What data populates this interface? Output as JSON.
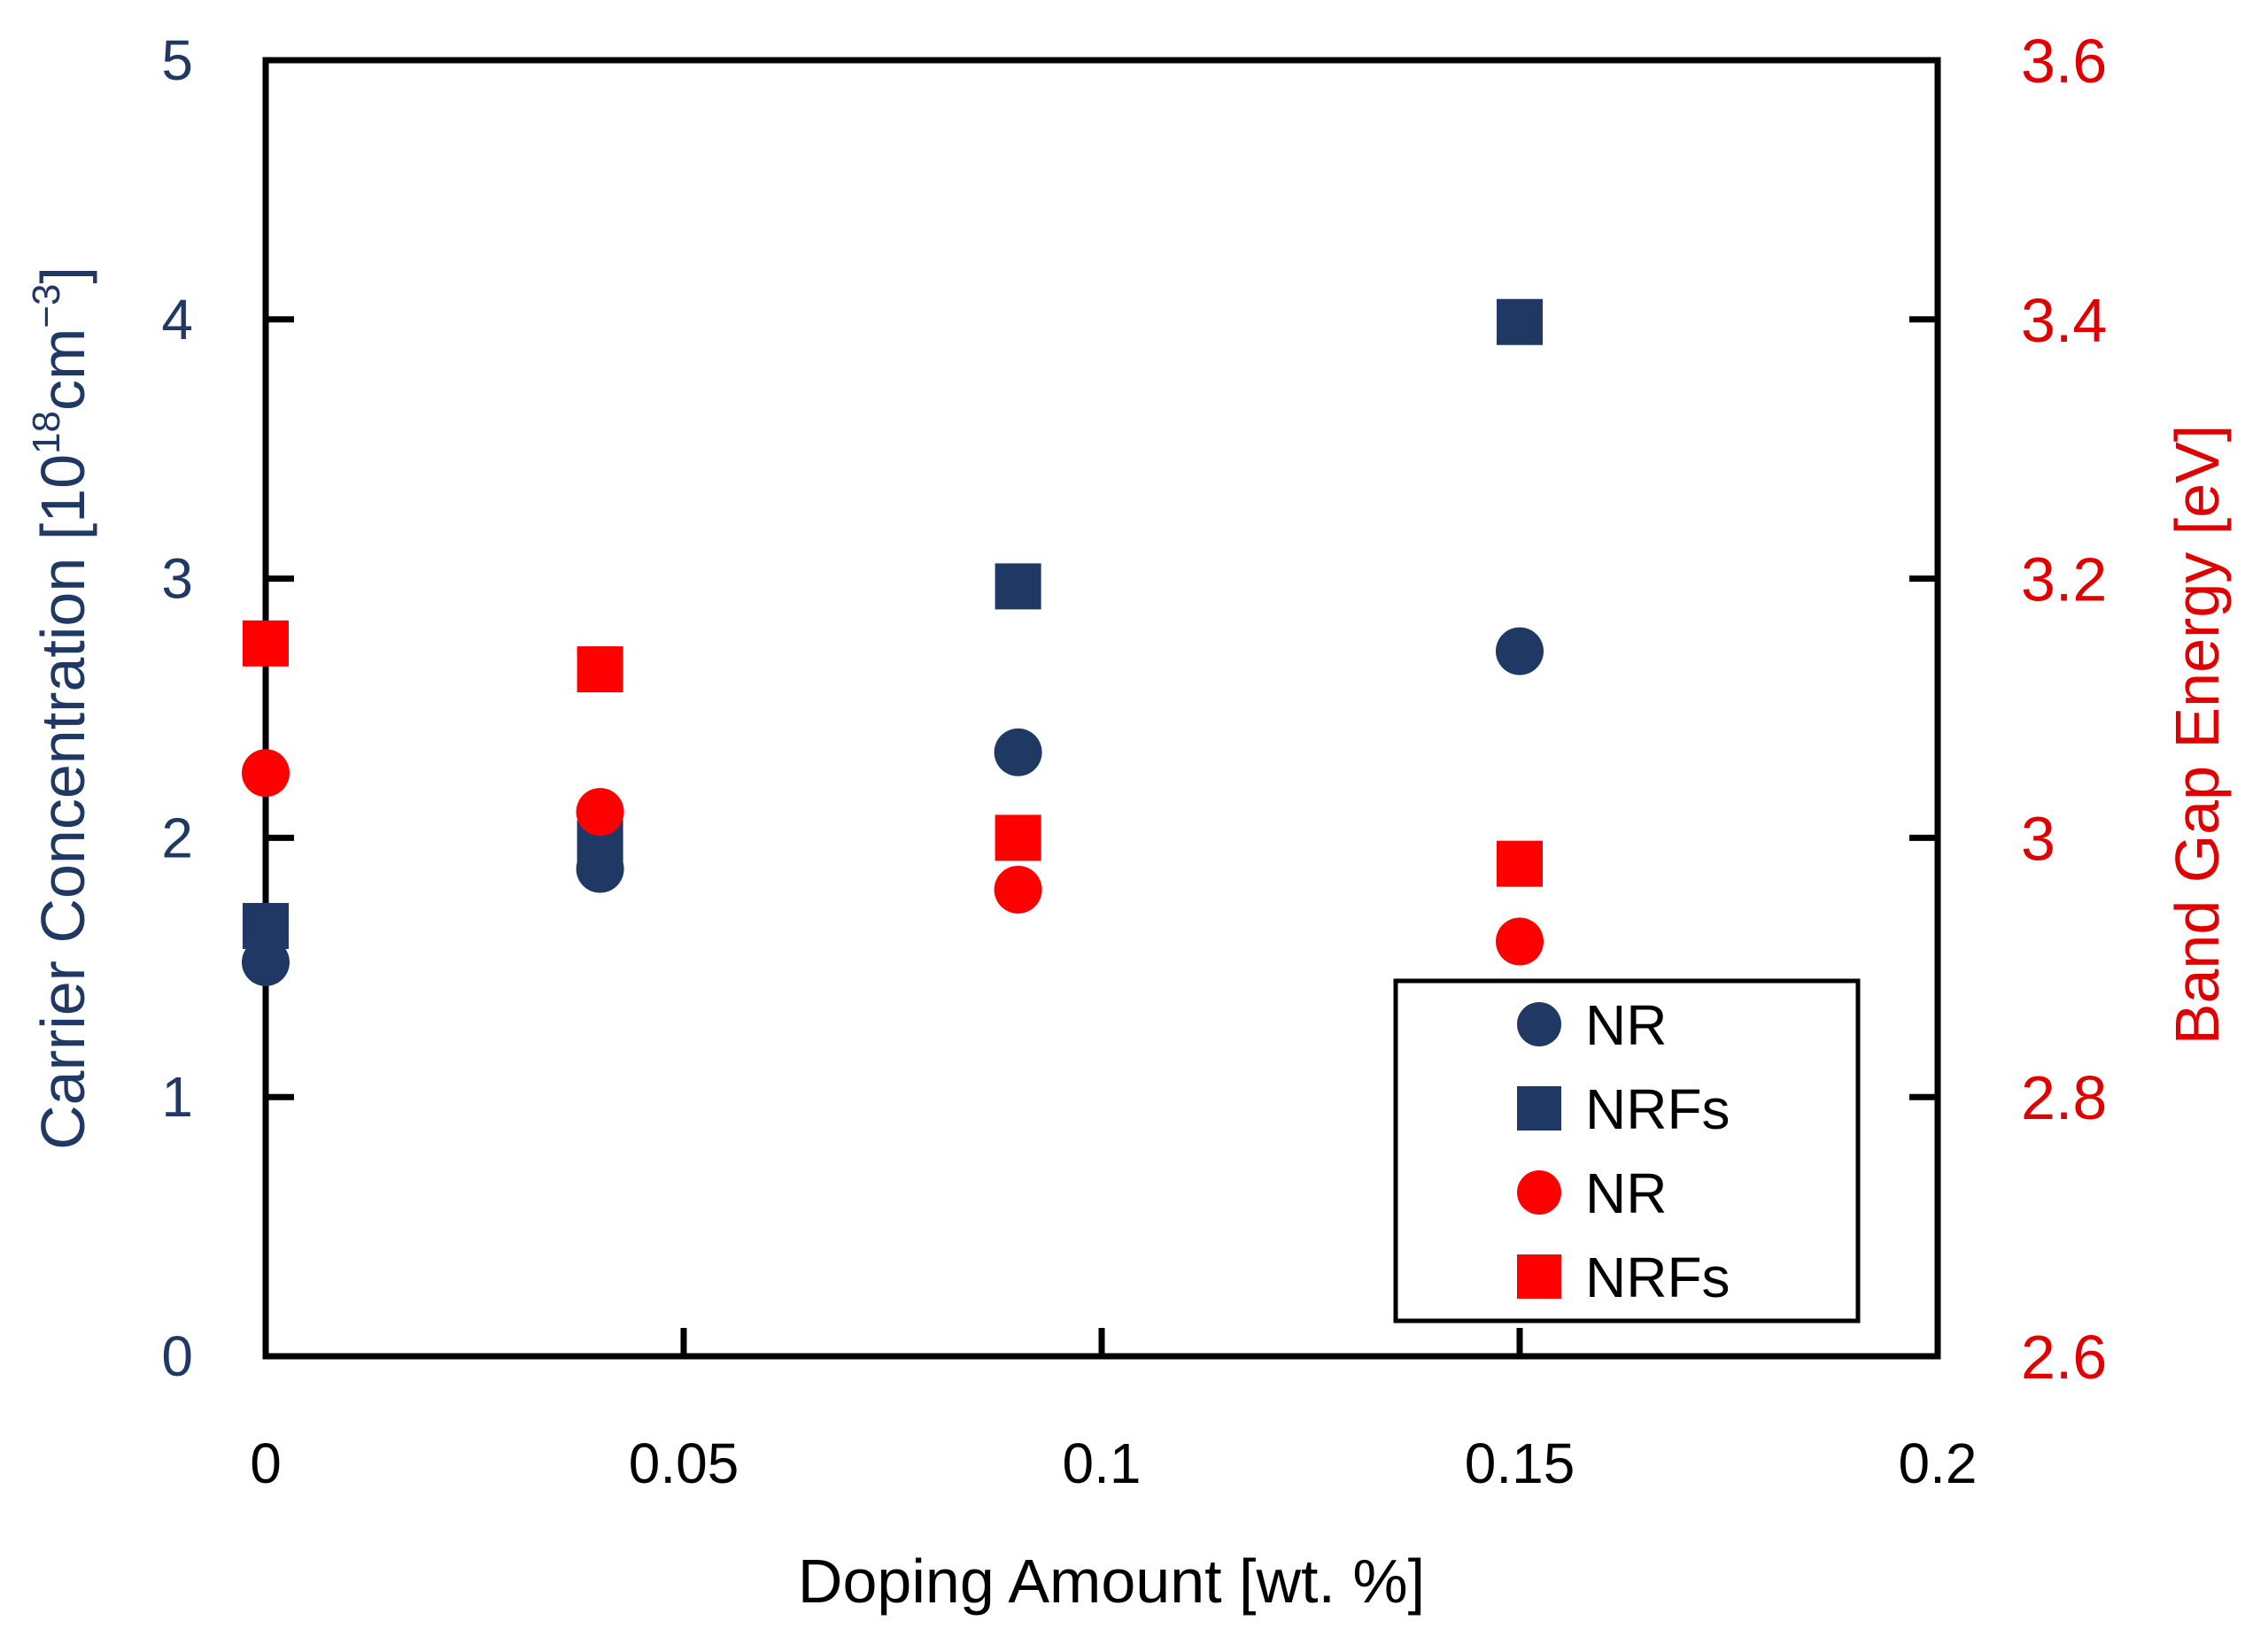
{
  "chart_data": {
    "type": "scatter",
    "title": "",
    "xlabel": "Doping Amount [wt. %]",
    "ylabel_left": {
      "main": "Carrier Concentration [10",
      "sup1": "18",
      "mid": "cm",
      "sup2": "−3",
      "end": "]"
    },
    "ylabel_right": "Band Gap Energy [eV]",
    "xlim": [
      0,
      0.2
    ],
    "ylim_left": [
      0,
      5
    ],
    "ylim_right": [
      2.6,
      3.6
    ],
    "x_ticks": [
      "0",
      "0.05",
      "0.1",
      "0.15",
      "0.2"
    ],
    "y_left_ticks": [
      "0",
      "1",
      "2",
      "3",
      "4",
      "5"
    ],
    "y_right_ticks": [
      "2.6",
      "2.8",
      "3",
      "3.2",
      "3.4",
      "3.6"
    ],
    "grid": false,
    "legend_position": "bottom-right",
    "series": [
      {
        "name": "NR",
        "axis": "left",
        "marker": "circle",
        "color": "#1f3864",
        "x": [
          0,
          0.04,
          0.09,
          0.15
        ],
        "y": [
          1.52,
          1.88,
          2.33,
          2.72
        ]
      },
      {
        "name": "NRFs",
        "axis": "left",
        "marker": "square",
        "color": "#1f3864",
        "x": [
          0,
          0.04,
          0.09,
          0.15
        ],
        "y": [
          1.66,
          1.98,
          2.97,
          3.99
        ]
      },
      {
        "name": "NR",
        "axis": "right",
        "marker": "circle",
        "color": "#ff0000",
        "x": [
          0,
          0.04,
          0.09,
          0.15
        ],
        "y": [
          3.05,
          3.02,
          2.96,
          2.92
        ]
      },
      {
        "name": "NRFs",
        "axis": "right",
        "marker": "square",
        "color": "#ff0000",
        "x": [
          0,
          0.04,
          0.09,
          0.15
        ],
        "y": [
          3.15,
          3.13,
          3.0,
          2.98
        ]
      }
    ]
  }
}
